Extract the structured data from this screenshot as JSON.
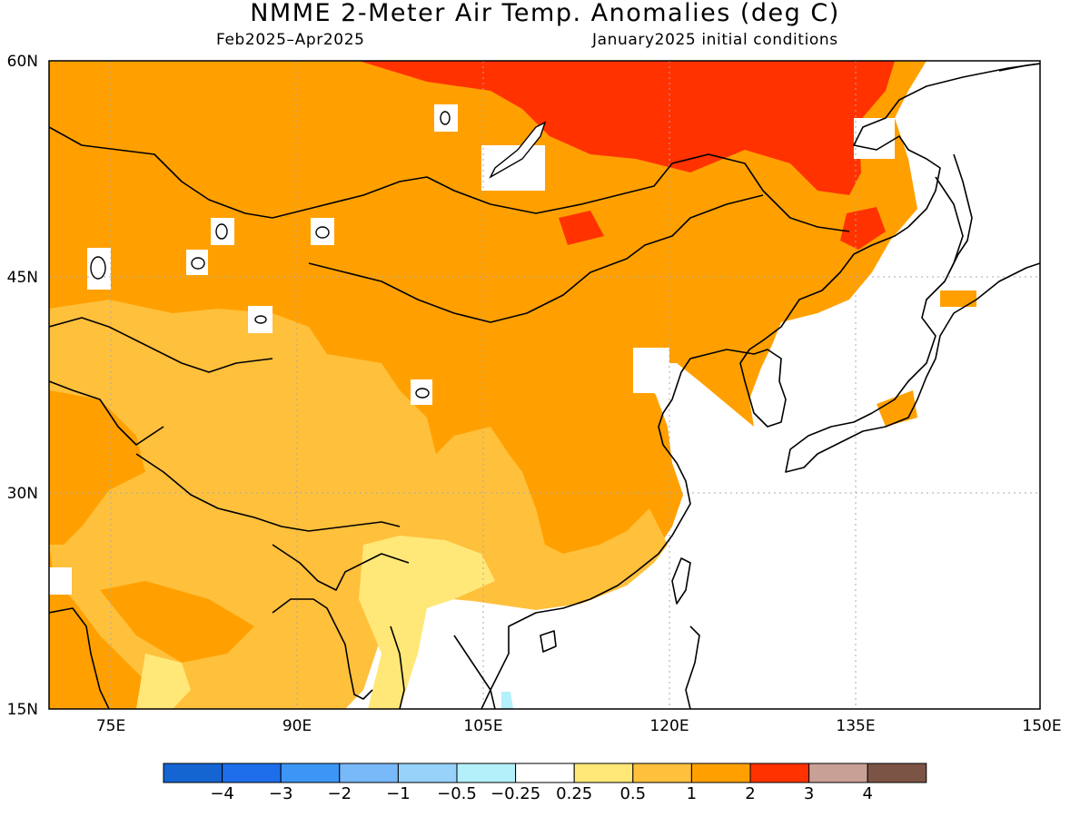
{
  "header": {
    "title": "NMME 2-Meter Air Temp. Anomalies (deg C)",
    "valid_period": "Feb2025–Apr2025",
    "initial_conditions": "January2025 initial conditions"
  },
  "map": {
    "lon_range": [
      70,
      150
    ],
    "lat_range": [
      15,
      60
    ],
    "lat_labels": [
      "60N",
      "45N",
      "30N",
      "15N"
    ],
    "lon_labels": [
      "75E",
      "90E",
      "105E",
      "120E",
      "135E",
      "150E"
    ]
  },
  "colorbar": {
    "labels": [
      "−4",
      "−3",
      "−2",
      "−1",
      "−0.5",
      "−0.25",
      "0.25",
      "0.5",
      "1",
      "2",
      "3",
      "4"
    ],
    "colors": [
      "#1464d2",
      "#1e6eeb",
      "#3c96f5",
      "#78b9fa",
      "#96d2fa",
      "#b4f0fa",
      "#ffffff",
      "#ffe878",
      "#ffc03c",
      "#ffa000",
      "#ff3200",
      "#c8a096",
      "#7c5446"
    ]
  }
}
